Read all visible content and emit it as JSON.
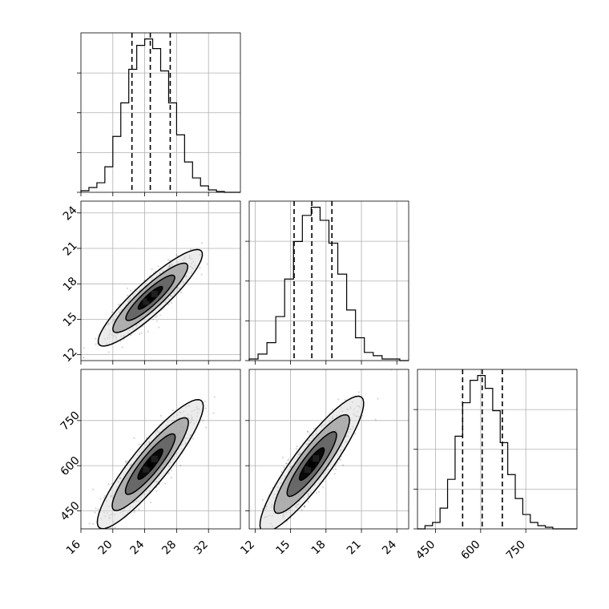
{
  "chart_data": {
    "type": "corner",
    "grid": true,
    "variables": [
      {
        "id": "v0",
        "label": "",
        "range": [
          16,
          36
        ],
        "ticks": [
          16,
          20,
          24,
          28,
          32
        ],
        "median": 24.7,
        "q16": 22.4,
        "q84": 27.2
      },
      {
        "id": "v1",
        "label": "",
        "range": [
          11.5,
          25
        ],
        "ticks": [
          12,
          15,
          18,
          21,
          24
        ],
        "median": 16.8,
        "q16": 15.3,
        "q84": 18.5
      },
      {
        "id": "v2",
        "label": "",
        "range": [
          390,
          920
        ],
        "ticks": [
          450,
          600,
          750
        ],
        "median": 605,
        "q16": 540,
        "q84": 672
      }
    ],
    "histograms": [
      {
        "variable": "v0",
        "bin_edges": [
          16,
          17,
          18,
          19,
          20,
          21,
          22,
          23,
          24,
          25,
          26,
          27,
          28,
          29,
          30,
          31,
          32,
          33,
          34,
          35,
          36
        ],
        "counts": [
          0.01,
          0.03,
          0.06,
          0.16,
          0.35,
          0.56,
          0.77,
          0.92,
          0.96,
          0.9,
          0.76,
          0.56,
          0.36,
          0.19,
          0.09,
          0.04,
          0.015,
          0.005,
          0,
          0
        ]
      },
      {
        "variable": "v1",
        "bin_edges": [
          11.5,
          12.25,
          13,
          13.75,
          14.5,
          15.25,
          16,
          16.75,
          17.5,
          18.25,
          19,
          19.75,
          20.5,
          21.25,
          22,
          22.75,
          23.5,
          24.25,
          25
        ],
        "counts": [
          0.01,
          0.04,
          0.11,
          0.27,
          0.5,
          0.73,
          0.89,
          0.94,
          0.86,
          0.72,
          0.53,
          0.31,
          0.14,
          0.05,
          0.03,
          0.01,
          0.01,
          0
        ]
      },
      {
        "variable": "v2",
        "bin_edges": [
          390,
          415,
          440,
          465,
          490,
          515,
          540,
          565,
          590,
          615,
          640,
          665,
          690,
          715,
          740,
          765,
          790,
          815,
          840,
          865,
          890,
          920
        ],
        "counts": [
          0,
          0.02,
          0.04,
          0.13,
          0.31,
          0.58,
          0.79,
          0.93,
          0.96,
          0.88,
          0.74,
          0.54,
          0.34,
          0.19,
          0.09,
          0.04,
          0.02,
          0.01,
          0,
          0,
          0
        ]
      }
    ],
    "pairs": [
      {
        "x": "v0",
        "y": "v1",
        "slope": 0.62,
        "intercept": 1.5,
        "scatter_sd_major": 2.2,
        "scatter_sd_minor": 0.55,
        "contour_levels": [
          {
            "sigma": 0.5,
            "half_length": 1.5,
            "half_width": 0.35
          },
          {
            "sigma": 1.0,
            "half_length": 3.0,
            "half_width": 0.7
          },
          {
            "sigma": 1.5,
            "half_length": 4.6,
            "half_width": 1.05
          },
          {
            "sigma": 2.0,
            "half_length": 6.4,
            "half_width": 1.45
          }
        ]
      },
      {
        "x": "v0",
        "y": "v2",
        "slope": 33.0,
        "intercept": -210,
        "scatter_sd_major": 2.2,
        "scatter_sd_minor": 0.55,
        "contour_levels": [
          {
            "sigma": 0.5,
            "half_length": 1.5,
            "half_width": 0.35
          },
          {
            "sigma": 1.0,
            "half_length": 3.0,
            "half_width": 0.7
          },
          {
            "sigma": 1.5,
            "half_length": 4.6,
            "half_width": 1.05
          },
          {
            "sigma": 2.0,
            "half_length": 6.4,
            "half_width": 1.45
          }
        ]
      },
      {
        "x": "v1",
        "y": "v2",
        "slope": 53.0,
        "intercept": -285,
        "scatter_sd_major": 1.45,
        "scatter_sd_minor": 0.36,
        "contour_levels": [
          {
            "sigma": 0.5,
            "half_length": 1.0,
            "half_width": 0.24
          },
          {
            "sigma": 1.0,
            "half_length": 2.0,
            "half_width": 0.46
          },
          {
            "sigma": 1.5,
            "half_length": 3.05,
            "half_width": 0.7
          },
          {
            "sigma": 2.0,
            "half_length": 4.2,
            "half_width": 0.95
          }
        ]
      }
    ],
    "colors": {
      "line": "#000000",
      "grid": "#b0b0b0",
      "fills": [
        "#ffffff",
        "#dcdcdc",
        "#a8a8a8",
        "#606060",
        "#000000"
      ]
    }
  }
}
